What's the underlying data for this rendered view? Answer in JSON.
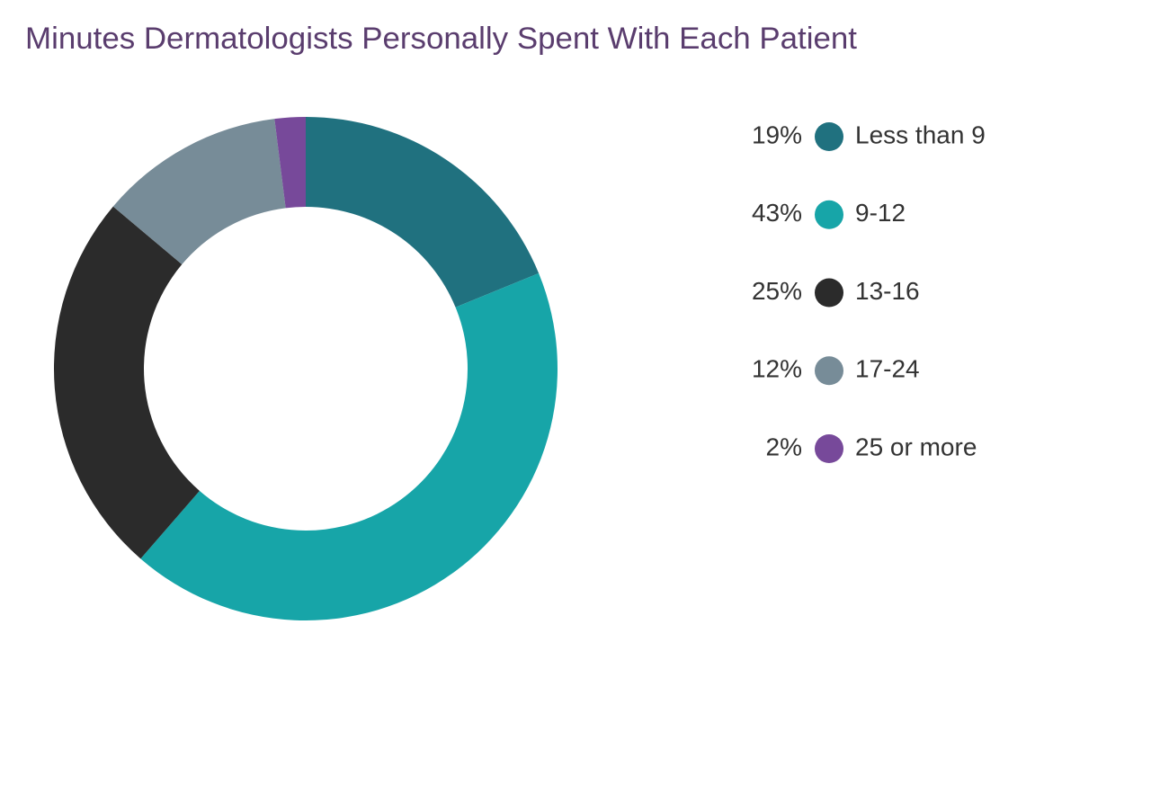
{
  "chart_data": {
    "type": "donut",
    "title": "Minutes Dermatologists Personally Spent With Each Patient",
    "categories": [
      "Less than 9",
      "9-12",
      "13-16",
      "17-24",
      "25 or more"
    ],
    "values": [
      19,
      43,
      25,
      12,
      2
    ],
    "value_labels": [
      "19%",
      "43%",
      "25%",
      "12%",
      "2%"
    ],
    "colors": [
      "#20717f",
      "#17a5a8",
      "#2b2b2b",
      "#778c98",
      "#77499a"
    ],
    "legend": "right"
  }
}
